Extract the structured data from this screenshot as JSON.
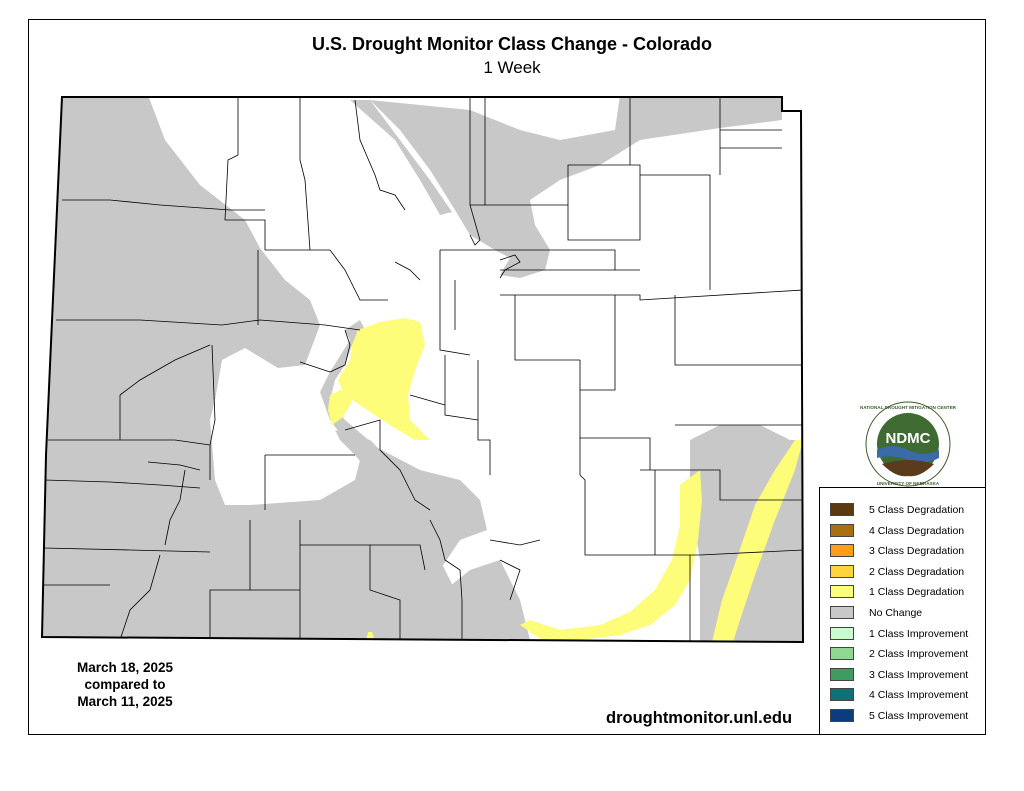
{
  "map": {
    "title": "U.S. Drought Monitor Class Change - Colorado",
    "subtitle": "1 Week",
    "region": "Colorado",
    "colors": {
      "no_change": "#c8c8c8",
      "one_class_degradation": "#fdfd79",
      "state_background": "#ffffff",
      "county_lines": "#000000"
    }
  },
  "dates": {
    "line1": "March 18, 2025",
    "line2": "compared to",
    "line3": "March 11, 2025"
  },
  "source_url": "droughtmonitor.unl.edu",
  "logo": {
    "text": "NDMC",
    "ring_top": "NATIONAL DROUGHT MITIGATION CENTER",
    "ring_bottom": "UNIVERSITY OF NEBRASKA"
  },
  "legend": {
    "items": [
      {
        "label": "5 Class Degradation",
        "color": "#5b3a0f"
      },
      {
        "label": "4 Class Degradation",
        "color": "#a8700f"
      },
      {
        "label": "3 Class Degradation",
        "color": "#ff9e17"
      },
      {
        "label": "2 Class Degradation",
        "color": "#ffd43d"
      },
      {
        "label": "1 Class Degradation",
        "color": "#fdfd79"
      },
      {
        "label": "No Change",
        "color": "#c8c8c8"
      },
      {
        "label": "1 Class Improvement",
        "color": "#cafccd"
      },
      {
        "label": "2 Class Improvement",
        "color": "#8fd88f"
      },
      {
        "label": "3 Class Improvement",
        "color": "#3e9c62"
      },
      {
        "label": "4 Class Improvement",
        "color": "#0f7178"
      },
      {
        "label": "5 Class Improvement",
        "color": "#0c3c80"
      }
    ]
  }
}
